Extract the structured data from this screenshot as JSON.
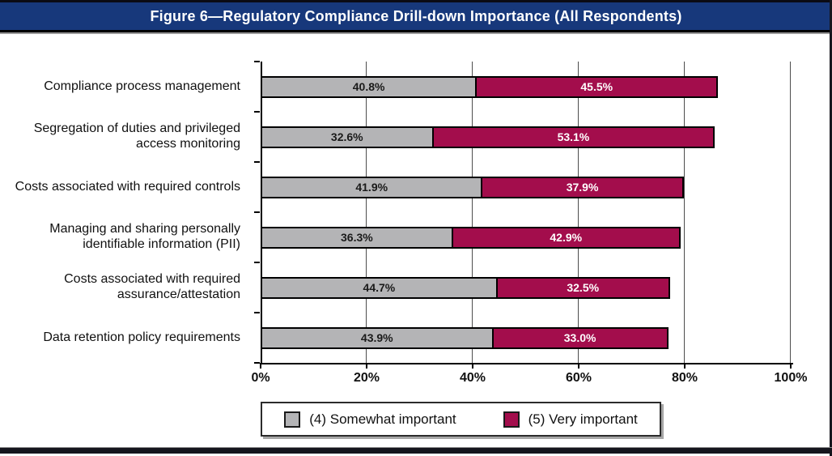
{
  "title": "Figure 6—Regulatory Compliance Drill-down Importance (All Respondents)",
  "colors": {
    "title_bar": "#17387b",
    "somewhat_important": "#b4b4b6",
    "very_important": "#a30d4c",
    "grid": "#4d4d4d",
    "axis": "#000000"
  },
  "chart_data": {
    "type": "bar",
    "orientation": "horizontal",
    "stacked": true,
    "title": "Figure 6—Regulatory Compliance Drill-down Importance (All Respondents)",
    "categories": [
      "Compliance process management",
      "Segregation of duties and privileged access monitoring",
      "Costs associated with required controls",
      "Managing and sharing personally identifiable information (PII)",
      "Costs associated with required assurance/attestation",
      "Data retention policy requirements"
    ],
    "series": [
      {
        "name": "(4) Somewhat important",
        "color": "#b4b4b6",
        "text_color": "#1a1a1a",
        "values": [
          40.8,
          32.6,
          41.9,
          36.3,
          44.7,
          43.9
        ],
        "labels": [
          "40.8%",
          "32.6%",
          "41.9%",
          "36.3%",
          "44.7%",
          "43.9%"
        ]
      },
      {
        "name": "(5) Very important",
        "color": "#a30d4c",
        "text_color": "#ffffff",
        "values": [
          45.5,
          53.1,
          37.9,
          42.9,
          32.5,
          33.0
        ],
        "labels": [
          "45.5%",
          "53.1%",
          "37.9%",
          "42.9%",
          "32.5%",
          "33.0%"
        ]
      }
    ],
    "x_axis": {
      "lim": [
        0,
        100
      ],
      "values": [
        0,
        20,
        40,
        60,
        80,
        100
      ],
      "labels": [
        "0%",
        "20%",
        "40%",
        "60%",
        "80%",
        "100%"
      ]
    },
    "grid": true,
    "legend_position": "bottom-center"
  }
}
